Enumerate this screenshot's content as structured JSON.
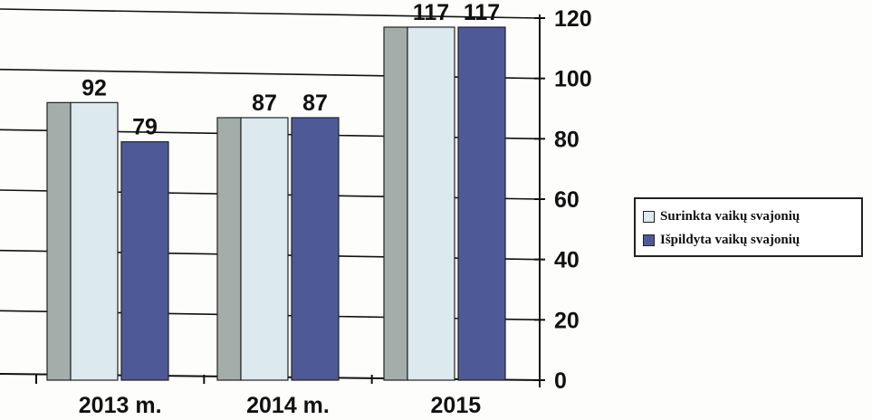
{
  "chart_data": {
    "type": "bar",
    "categories": [
      "2013 m.",
      "2014 m.",
      "2015"
    ],
    "series": [
      {
        "name": "Surinkta vaikų svajonių",
        "values": [
          92,
          87,
          117
        ],
        "color": "#dce9ef",
        "side_color": "#a3aeab"
      },
      {
        "name": "Išpildyta vaikų svajonių",
        "values": [
          79,
          87,
          117
        ],
        "color": "#4e5a98",
        "side_color": "#2f3868"
      }
    ],
    "data_labels": [
      [
        "92",
        "87",
        "117"
      ],
      [
        "79",
        "87",
        "117"
      ]
    ],
    "ylim": [
      0,
      120
    ],
    "yticks": [
      "0",
      "20",
      "40",
      "60",
      "80",
      "100",
      "120"
    ],
    "y_axis_side": "right",
    "grid": true,
    "legend_position": "right",
    "title": "",
    "xlabel": "",
    "ylabel": ""
  }
}
